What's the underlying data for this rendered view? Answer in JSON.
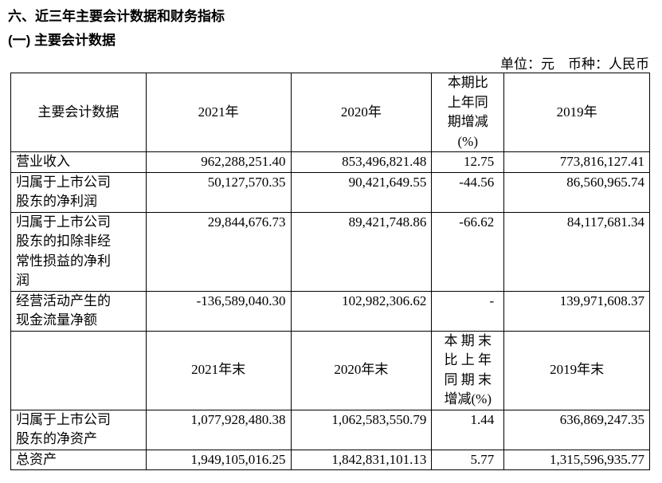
{
  "header": {
    "title": "六、近三年主要会计数据和财务指标",
    "subtitle": "(一) 主要会计数据",
    "unit": "单位：元　币种：人民币"
  },
  "table": {
    "rows": [
      [
        [
          "主要会计数据"
        ],
        [
          "2021年"
        ],
        [
          "2020年"
        ],
        [
          "本期比",
          "上年同",
          "期增减",
          "(%)"
        ],
        [
          "2019年"
        ]
      ],
      [
        [
          "营业收入"
        ],
        [
          "962,288,251.40"
        ],
        [
          "853,496,821.48"
        ],
        [
          "12.75"
        ],
        [
          "773,816,127.41"
        ]
      ],
      [
        [
          "归属于上市公司",
          "股东的净利润"
        ],
        [
          "50,127,570.35"
        ],
        [
          "90,421,649.55"
        ],
        [
          "-44.56"
        ],
        [
          "86,560,965.74"
        ]
      ],
      [
        [
          "归属于上市公司",
          "股东的扣除非经",
          "常性损益的净利",
          "润"
        ],
        [
          "29,844,676.73"
        ],
        [
          "89,421,748.86"
        ],
        [
          "-66.62"
        ],
        [
          "84,117,681.34"
        ]
      ],
      [
        [
          "经营活动产生的",
          "现金流量净额"
        ],
        [
          "-136,589,040.30"
        ],
        [
          "102,982,306.62"
        ],
        [
          "-"
        ],
        [
          "139,971,608.37"
        ]
      ],
      [
        [],
        [
          "2021年末"
        ],
        [
          "2020年末"
        ],
        [
          "本 期 末",
          "比 上 年",
          "同 期 末",
          "增减(%)"
        ],
        [
          "2019年末"
        ]
      ],
      [
        [
          "归属于上市公司",
          "股东的净资产"
        ],
        [
          "1,077,928,480.38"
        ],
        [
          "1,062,583,550.79"
        ],
        [
          "1.44"
        ],
        [
          "636,869,247.35"
        ]
      ],
      [
        [
          "总资产"
        ],
        [
          "1,949,105,016.25"
        ],
        [
          "1,842,831,101.13"
        ],
        [
          "5.77"
        ],
        [
          "1,315,596,935.77"
        ]
      ]
    ]
  }
}
